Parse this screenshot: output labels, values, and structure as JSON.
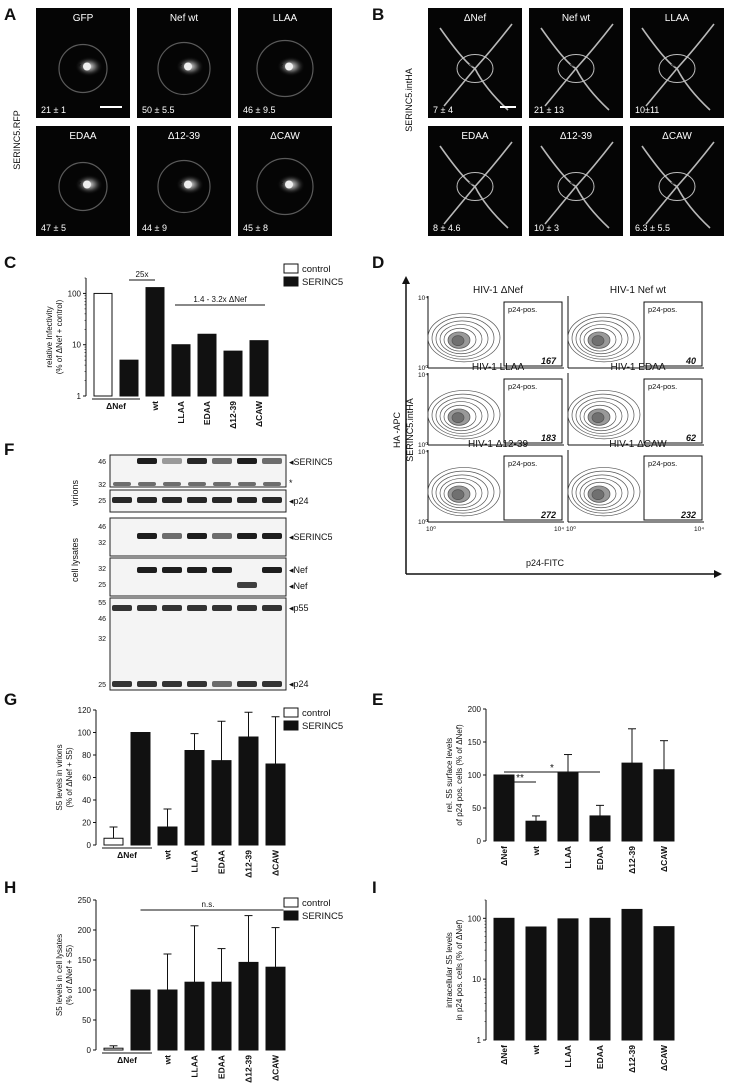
{
  "panels": {
    "A": {
      "letter": "A",
      "side_label": "SERINC5.RFP",
      "tiles": [
        {
          "title": "GFP",
          "value": "21 ± 1"
        },
        {
          "title": "Nef wt",
          "value": "50 ± 5.5"
        },
        {
          "title": "LLAA",
          "value": "46 ± 9.5"
        },
        {
          "title": "EDAA",
          "value": "47 ± 5"
        },
        {
          "title": "Δ12-39",
          "value": "44 ± 9"
        },
        {
          "title": "ΔCAW",
          "value": "45 ± 8"
        }
      ]
    },
    "B": {
      "letter": "B",
      "side_label": "SERINC5.intHA",
      "tiles": [
        {
          "title": "ΔNef",
          "value": "7 ± 4"
        },
        {
          "title": "Nef wt",
          "value": "21 ± 13"
        },
        {
          "title": "LLAA",
          "value": "10±11"
        },
        {
          "title": "EDAA",
          "value": "8 ± 4.6"
        },
        {
          "title": "Δ12-39",
          "value": "10 ± 3"
        },
        {
          "title": "ΔCAW",
          "value": "6.3 ± 5.5"
        }
      ]
    },
    "D": {
      "letter": "D",
      "ylabel1": "HA -APC",
      "ylabel2": "SERINC5.intHA",
      "xlabel": "p24-FITC",
      "gate": "p24-pos.",
      "plots": [
        {
          "title": "HIV-1 ΔNef",
          "value": "167"
        },
        {
          "title": "HIV-1 Nef wt",
          "value": "40"
        },
        {
          "title": "HIV-1 LLAA",
          "value": "183"
        },
        {
          "title": "HIV-1 EDAA",
          "value": "62"
        },
        {
          "title": "HIV-1 Δ12-39",
          "value": "272"
        },
        {
          "title": "HIV-1 ΔCAW",
          "value": "232"
        }
      ],
      "tick_low": "10⁰",
      "tick_high": "10⁴"
    },
    "F": {
      "letter": "F",
      "group_virions": "virions",
      "group_lysates": "cell lysates",
      "blots": [
        {
          "name": "blot-virions-serinc5",
          "markers": [
            "46",
            "32"
          ],
          "labels": [
            "◂SERINC5",
            "*"
          ]
        },
        {
          "name": "blot-virions-p24",
          "markers": [
            "25"
          ],
          "labels": [
            "◂p24"
          ]
        },
        {
          "name": "blot-lysate-serinc5",
          "markers": [
            "46",
            "32"
          ],
          "labels": [
            "◂SERINC5"
          ]
        },
        {
          "name": "blot-lysate-nef",
          "markers": [
            "32",
            "25"
          ],
          "labels": [
            "◂Nef",
            "◂Nef"
          ]
        },
        {
          "name": "blot-lysate-p55",
          "markers": [
            "55",
            "46",
            "32",
            "25"
          ],
          "labels": [
            "◂p55",
            "◂p24"
          ]
        }
      ]
    }
  },
  "legend": {
    "control": "control",
    "serinc5": "SERINC5"
  },
  "chart_data": [
    {
      "panel": "C",
      "type": "bar",
      "ylabel": "relative Infectivity (% of ΔNef + control)",
      "yscale": "log",
      "ylim": [
        1,
        200
      ],
      "yticks": [
        "1",
        "10",
        "100"
      ],
      "categories": [
        "ΔNef",
        "ΔNef",
        "wt",
        "LLAA",
        "EDAA",
        "Δ12-39",
        "ΔCAW"
      ],
      "category_labels": [
        "ΔNef",
        "wt",
        "LLAA",
        "EDAA",
        "Δ12-39",
        "ΔCAW"
      ],
      "series": [
        {
          "name": "control",
          "values": [
            100,
            null,
            null,
            null,
            null,
            null,
            null
          ]
        },
        {
          "name": "SERINC5",
          "values": [
            null,
            5,
            130,
            10,
            16,
            7.5,
            12
          ]
        }
      ],
      "annotations": [
        "25x",
        "1.4 - 3.2x ΔNef"
      ]
    },
    {
      "panel": "G",
      "type": "bar",
      "ylabel": "S5 levels in virions (% of ΔNef + S5)",
      "ylim": [
        0,
        120
      ],
      "yticks": [
        "0",
        "20",
        "40",
        "60",
        "80",
        "100",
        "120"
      ],
      "category_labels": [
        "ΔNef",
        "wt",
        "LLAA",
        "EDAA",
        "Δ12-39",
        "ΔCAW"
      ],
      "series": [
        {
          "name": "control",
          "values": [
            6,
            null,
            null,
            null,
            null,
            null,
            null
          ]
        },
        {
          "name": "SERINC5",
          "values": [
            null,
            100,
            16,
            84,
            75,
            96,
            72
          ]
        }
      ],
      "errors": [
        10,
        0,
        16,
        15,
        35,
        22,
        42
      ]
    },
    {
      "panel": "E",
      "type": "bar",
      "ylabel": "rel. S5 surface levels of p24 pos. cells (% of ΔNef)",
      "ylim": [
        0,
        200
      ],
      "yticks": [
        "0",
        "50",
        "100",
        "150",
        "200"
      ],
      "category_labels": [
        "ΔNef",
        "wt",
        "LLAA",
        "EDAA",
        "Δ12-39",
        "ΔCAW"
      ],
      "values": [
        100,
        30,
        103,
        38,
        118,
        108
      ],
      "errors": [
        0,
        8,
        28,
        16,
        52,
        44
      ],
      "annotations": [
        "**",
        "*"
      ]
    },
    {
      "panel": "H",
      "type": "bar",
      "ylabel": "S5 levels in cell lysates (% of ΔNef + S5)",
      "ylim": [
        0,
        250
      ],
      "yticks": [
        "0",
        "50",
        "100",
        "150",
        "200",
        "250"
      ],
      "category_labels": [
        "ΔNef",
        "wt",
        "LLAA",
        "EDAA",
        "Δ12-39",
        "ΔCAW"
      ],
      "series": [
        {
          "name": "control",
          "values": [
            3,
            null,
            null,
            null,
            null,
            null,
            null
          ]
        },
        {
          "name": "SERINC5",
          "values": [
            null,
            100,
            100,
            113,
            113,
            146,
            138
          ]
        }
      ],
      "errors": [
        4,
        0,
        60,
        94,
        56,
        78,
        66
      ],
      "annotations": [
        "n.s."
      ]
    },
    {
      "panel": "I",
      "type": "bar",
      "ylabel": "intracellular S5 levels in p24 pos. cells (% of ΔNef)",
      "yscale": "log",
      "ylim": [
        1,
        200
      ],
      "yticks": [
        "1",
        "10",
        "100"
      ],
      "category_labels": [
        "ΔNef",
        "wt",
        "LLAA",
        "EDAA",
        "Δ12-39",
        "ΔCAW"
      ],
      "values": [
        100,
        72,
        98,
        100,
        140,
        73
      ]
    }
  ]
}
